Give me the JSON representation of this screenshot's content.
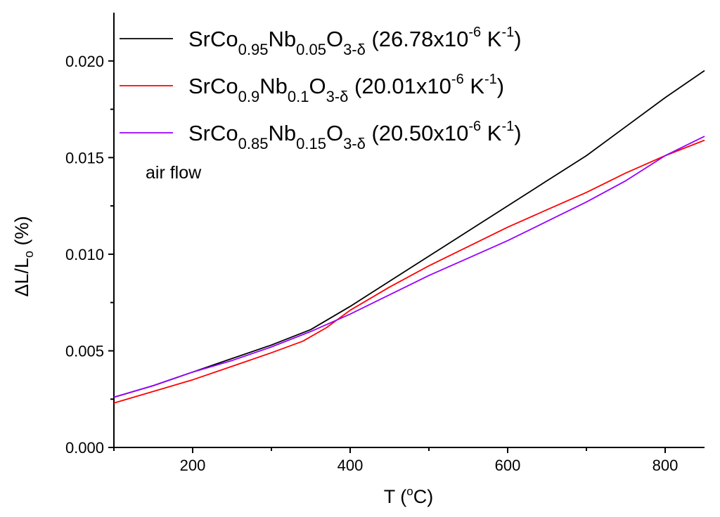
{
  "chart_data": {
    "type": "line",
    "xlabel": {
      "main": "T (",
      "sup": "o",
      "tail": "C)"
    },
    "ylabel": {
      "pre": "ΔL/L",
      "sub": "o",
      "post": " (%)"
    },
    "xlim": [
      100,
      850
    ],
    "ylim": [
      0,
      0.0225
    ],
    "x_ticks": [
      200,
      400,
      600,
      800
    ],
    "x_tick_labels": [
      "200",
      "400",
      "600",
      "800"
    ],
    "y_ticks": [
      0,
      0.005,
      0.01,
      0.015,
      0.02
    ],
    "y_tick_labels": [
      "0.000",
      "0.005",
      "0.010",
      "0.015",
      "0.020"
    ],
    "grid": false,
    "legend_position": "top-left",
    "annotation": "air flow",
    "series": [
      {
        "name": "SrCo0.95Nb0.05O3-δ (26.78x10-6 K-1)",
        "label_parts": [
          {
            "t": "SrCo"
          },
          {
            "t": "0.95",
            "sub": true
          },
          {
            "t": "Nb"
          },
          {
            "t": "0.05",
            "sub": true
          },
          {
            "t": "O"
          },
          {
            "t": "3-δ",
            "sub": true
          },
          {
            "t": " (26.78x10"
          },
          {
            "t": "-6",
            "sup": true
          },
          {
            "t": " K"
          },
          {
            "t": "-1",
            "sup": true
          },
          {
            "t": ")"
          }
        ],
        "color": "#000000",
        "x": [
          100,
          150,
          200,
          250,
          300,
          350,
          400,
          450,
          500,
          550,
          600,
          650,
          700,
          750,
          800,
          850
        ],
        "y": [
          0.0026,
          0.0032,
          0.0039,
          0.0046,
          0.0053,
          0.0061,
          0.0073,
          0.0086,
          0.0099,
          0.0112,
          0.0125,
          0.0138,
          0.0151,
          0.0166,
          0.0181,
          0.0195
        ]
      },
      {
        "name": "SrCo0.9Nb0.1O3-δ (20.01x10-6 K-1)",
        "label_parts": [
          {
            "t": "SrCo"
          },
          {
            "t": "0.9",
            "sub": true
          },
          {
            "t": "Nb"
          },
          {
            "t": "0.1",
            "sub": true
          },
          {
            "t": "O"
          },
          {
            "t": "3-δ",
            "sub": true
          },
          {
            "t": " (20.01x10"
          },
          {
            "t": "-6",
            "sup": true
          },
          {
            "t": " K"
          },
          {
            "t": "-1",
            "sup": true
          },
          {
            "t": ")"
          }
        ],
        "color": "#ff0000",
        "x": [
          100,
          150,
          200,
          250,
          300,
          340,
          370,
          400,
          450,
          500,
          550,
          600,
          650,
          700,
          750,
          800,
          850
        ],
        "y": [
          0.0023,
          0.0029,
          0.0035,
          0.0042,
          0.0049,
          0.0055,
          0.0062,
          0.0071,
          0.0083,
          0.0094,
          0.0104,
          0.0114,
          0.0123,
          0.0132,
          0.0142,
          0.0151,
          0.0159
        ]
      },
      {
        "name": "SrCo0.85Nb0.15O3-δ (20.50x10-6 K-1)",
        "label_parts": [
          {
            "t": "SrCo"
          },
          {
            "t": "0.85",
            "sub": true
          },
          {
            "t": "Nb"
          },
          {
            "t": "0.15",
            "sub": true
          },
          {
            "t": "O"
          },
          {
            "t": "3-δ",
            "sub": true
          },
          {
            "t": " (20.50x10"
          },
          {
            "t": "-6",
            "sup": true
          },
          {
            "t": " K"
          },
          {
            "t": "-1",
            "sup": true
          },
          {
            "t": ")"
          }
        ],
        "color": "#9900ff",
        "x": [
          100,
          150,
          200,
          250,
          300,
          350,
          400,
          450,
          500,
          550,
          600,
          650,
          700,
          750,
          800,
          850
        ],
        "y": [
          0.0026,
          0.0032,
          0.0039,
          0.0045,
          0.0052,
          0.006,
          0.0069,
          0.0079,
          0.0089,
          0.0098,
          0.0107,
          0.0117,
          0.0127,
          0.0138,
          0.0151,
          0.0161
        ]
      }
    ]
  }
}
